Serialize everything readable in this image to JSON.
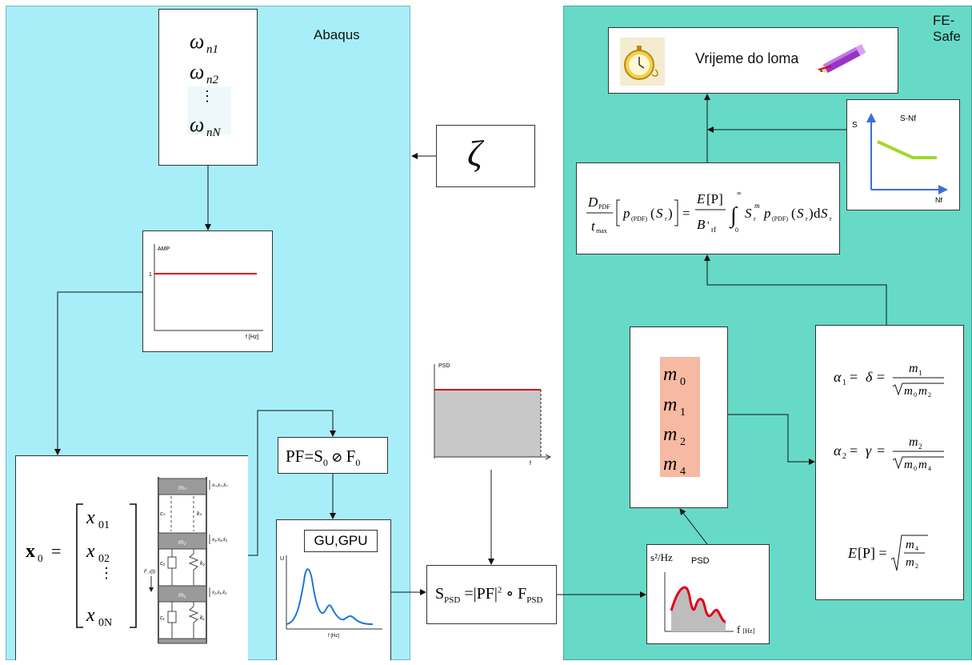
{
  "abaqus": {
    "label": "Abaqus"
  },
  "fesafe": {
    "label": "FE-Safe"
  },
  "frequencies": {
    "items": [
      "ω_n1",
      "ω_n2",
      "⋮",
      "ω_nN"
    ]
  },
  "damping": {
    "symbol": "ζ"
  },
  "amp_chart": {
    "ylabel": "AMP",
    "ytick": "1",
    "xlabel": "f [Hz]"
  },
  "input_psd": {
    "ylabel": "PSD",
    "xlabel": "f"
  },
  "pf_formula": {
    "text": "PF=S₀⊘F₀"
  },
  "gu_box": {
    "label": "GU,GPU",
    "ylabel": "U",
    "xlabel": "f [Hz]"
  },
  "spsd_formula": {
    "text": "S_PSD=|PF|²∘F_PSD"
  },
  "response_psd": {
    "ylabel": "s²/Hz",
    "title": "PSD",
    "xlabel": "f [Hz]"
  },
  "moments": {
    "items": [
      "m0",
      "m1",
      "m2",
      "m4"
    ]
  },
  "bandwidth": {
    "alpha1": "α₁ = δ = m₁ / √(m₀m₂)",
    "alpha2": "α₂ = γ = m₂ / √(m₀m₄)",
    "ep": "E[P] = √(m₄/m₂)"
  },
  "damage": {
    "text": "D_PDF/t_max [p_(PDF)(S_r)] = E[P]/B'_rf ∫₀^∞ S_r^m p_(PDF)(S_r) dS_r"
  },
  "sn_curve": {
    "title": "S-Nf",
    "ylabel": "S",
    "xlabel": "Nf"
  },
  "result": {
    "label": "Vrijeme do loma"
  },
  "system": {
    "vector": "x₀ = [x01, x02, ⋮, x0N]",
    "force_label": "F_i(t)"
  },
  "colors": {
    "abaqus_bg": "#a8eef9",
    "fesafe_bg": "#66dac7",
    "moments_bg": "#f6b9a1",
    "red_line": "#e3001b",
    "blue_curve": "#1f77d6",
    "sn_green": "#a3d82a",
    "sn_axis": "#3b6fd6"
  }
}
